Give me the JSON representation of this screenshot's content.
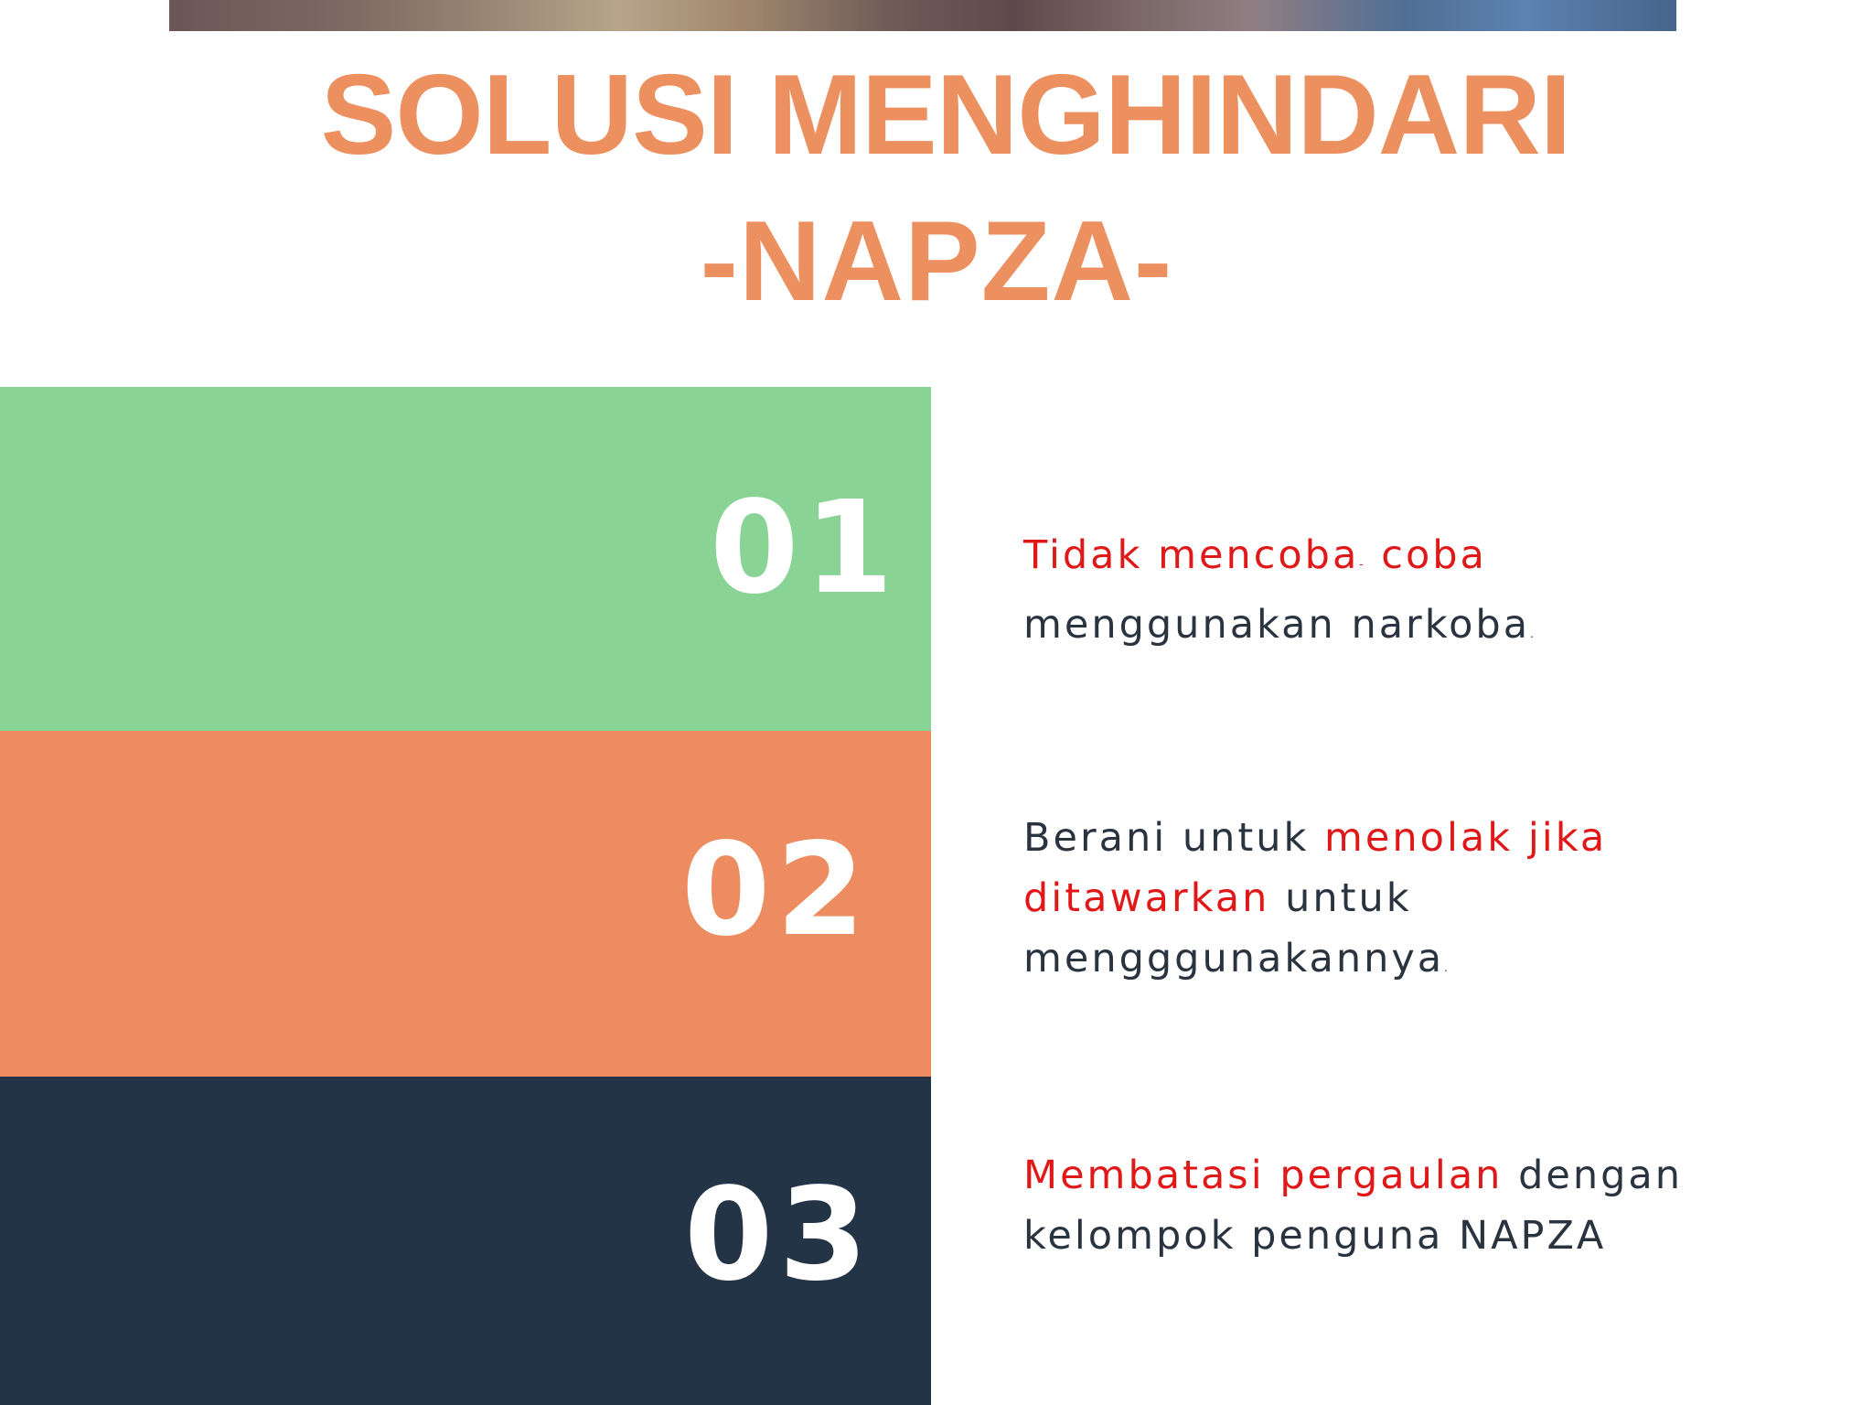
{
  "title": {
    "line1": "SOLUSI MENGHINDARI",
    "line2": "-NAPZA-"
  },
  "colors": {
    "title": "#ec9060",
    "band_1": "#89d394",
    "band_2": "#ec8c60",
    "band_3": "#243447",
    "highlight_text": "#e01818",
    "body_text": "#2a3340"
  },
  "items": [
    {
      "number": "01",
      "text_a": "Tidak mencoba",
      "text_b": "-",
      "text_c": " coba",
      "text_d": "menggunakan narkoba",
      "text_e": "."
    },
    {
      "number": "02",
      "text_a": "Berani untuk ",
      "text_b": "menolak jika",
      "text_c": "ditawarkan",
      "text_d": " untuk",
      "text_e": "mengggunakannya",
      "text_f": "."
    },
    {
      "number": "03",
      "text_a": "Membatasi pergaulan",
      "text_b": " dengan",
      "text_c": "kelompok penguna NAPZA"
    }
  ]
}
